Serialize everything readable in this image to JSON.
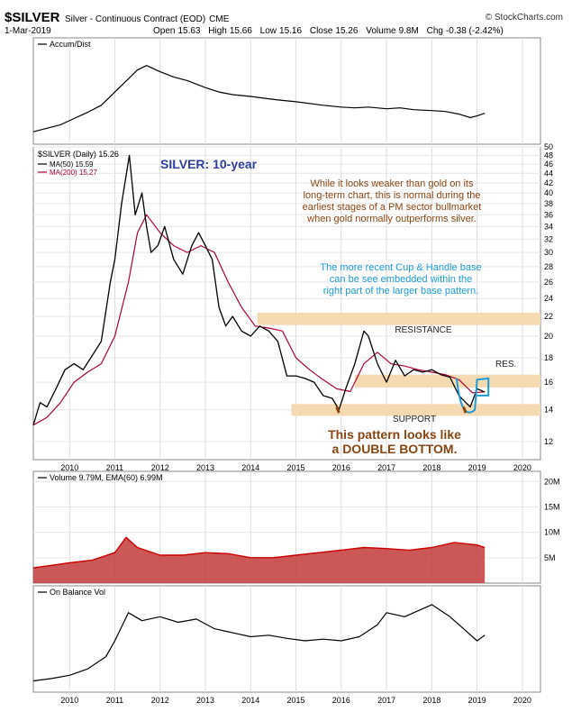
{
  "header": {
    "symbol": "$SILVER",
    "description": "Silver - Continuous Contract (EOD)",
    "exchange": "CME",
    "date": "1-Mar-2019",
    "source": "© StockCharts.com",
    "open_label": "Open",
    "open": "15.63",
    "high_label": "High",
    "high": "15.66",
    "low_label": "Low",
    "low": "15.16",
    "close_label": "Close",
    "close": "15.26",
    "volume_label": "Volume",
    "volume": "9.8M",
    "chg_label": "Chg",
    "chg": "-0.38 (-2.42%)"
  },
  "colors": {
    "price": "#000000",
    "ma50": "#000000",
    "ma200": "#b0003a",
    "band": "#f5d9b0",
    "annotation": "#8b4513",
    "cup": "#1e9bd7",
    "volume": "#c23a3a",
    "ema": "#cc0000"
  },
  "chart_data": [
    {
      "type": "line",
      "panel": "accum-dist",
      "legend": [
        "Accum/Dist"
      ],
      "x": [
        2009.2,
        2009.5,
        2009.8,
        2010.1,
        2010.4,
        2010.7,
        2011.0,
        2011.3,
        2011.5,
        2011.7,
        2012.0,
        2012.3,
        2012.6,
        2013.0,
        2013.3,
        2013.6,
        2014.0,
        2014.3,
        2014.6,
        2015.0,
        2015.3,
        2015.6,
        2016.0,
        2016.3,
        2016.6,
        2017.0,
        2017.3,
        2017.6,
        2018.0,
        2018.3,
        2018.6,
        2018.85,
        2019.0,
        2019.17
      ],
      "y": [
        10,
        14,
        18,
        25,
        32,
        40,
        55,
        70,
        80,
        85,
        78,
        72,
        68,
        60,
        55,
        52,
        50,
        48,
        46,
        44,
        42,
        40,
        38,
        37,
        38,
        36,
        37,
        35,
        34,
        33,
        30,
        26,
        28,
        31
      ]
    },
    {
      "type": "line",
      "panel": "price",
      "legend": [
        "$SILVER (Daily) 15.26",
        "MA(50) 15.59",
        "MA(200) 15.27"
      ],
      "ylim": [
        11,
        50
      ],
      "ytick_labels": [
        "50",
        "48",
        "46",
        "44",
        "42",
        "40",
        "38",
        "36",
        "34",
        "32",
        "30",
        "28",
        "26",
        "24",
        "22",
        "20",
        "18",
        "16",
        "14",
        "12"
      ],
      "yticks": [
        50,
        48,
        46,
        44,
        42,
        40,
        38,
        36,
        34,
        32,
        30,
        28,
        26,
        24,
        22,
        20,
        18,
        16,
        14,
        12
      ],
      "xtick_labels": [
        "2010",
        "2011",
        "2012",
        "2013",
        "2014",
        "2015",
        "2016",
        "2017",
        "2018",
        "2019",
        "2020"
      ],
      "xticks": [
        2010,
        2011,
        2012,
        2013,
        2014,
        2015,
        2016,
        2017,
        2018,
        2019,
        2020
      ],
      "xlim": [
        2009.2,
        2020.4
      ],
      "series": [
        {
          "x": [
            2009.2,
            2009.35,
            2009.5,
            2009.7,
            2009.9,
            2010.1,
            2010.3,
            2010.5,
            2010.7,
            2010.9,
            2011.0,
            2011.15,
            2011.32,
            2011.45,
            2011.6,
            2011.7,
            2011.8,
            2011.95,
            2012.1,
            2012.3,
            2012.5,
            2012.7,
            2012.85,
            2013.0,
            2013.15,
            2013.3,
            2013.45,
            2013.6,
            2013.8,
            2014.0,
            2014.2,
            2014.4,
            2014.6,
            2014.8,
            2015.0,
            2015.2,
            2015.4,
            2015.6,
            2015.8,
            2015.95,
            2016.1,
            2016.3,
            2016.5,
            2016.6,
            2016.8,
            2017.0,
            2017.2,
            2017.4,
            2017.6,
            2017.8,
            2018.0,
            2018.2,
            2018.4,
            2018.6,
            2018.75,
            2018.85,
            2019.0,
            2019.17
          ],
          "y": [
            13,
            14.5,
            14.2,
            15.5,
            17,
            17.5,
            17,
            18.2,
            19.5,
            26,
            29,
            38,
            48,
            36,
            40,
            34,
            30,
            31,
            34,
            29,
            27,
            31,
            33,
            31,
            29,
            23,
            21,
            22,
            20.5,
            20,
            21,
            20.5,
            19.5,
            16.5,
            16.5,
            16.3,
            16,
            15,
            14.8,
            14,
            15.5,
            17.5,
            20.5,
            20,
            17.5,
            16,
            17.8,
            16.5,
            17,
            16.8,
            17,
            16.6,
            16.4,
            15,
            14.5,
            14.2,
            15.5,
            15.26
          ]
        },
        {
          "x": [
            2009.2,
            2009.5,
            2009.8,
            2010.1,
            2010.4,
            2010.7,
            2011.0,
            2011.3,
            2011.5,
            2011.7,
            2012.0,
            2012.3,
            2012.6,
            2012.9,
            2013.2,
            2013.5,
            2013.8,
            2014.1,
            2014.4,
            2014.7,
            2015.0,
            2015.3,
            2015.6,
            2015.9,
            2016.2,
            2016.5,
            2016.8,
            2017.1,
            2017.4,
            2017.7,
            2018.0,
            2018.3,
            2018.6,
            2018.9,
            2019.17
          ],
          "y": [
            13,
            13.5,
            14.5,
            16,
            16.8,
            17.5,
            20,
            26,
            33,
            36,
            33,
            31,
            30,
            31,
            30,
            26,
            23,
            21,
            20.8,
            20.5,
            18,
            17,
            16.2,
            15.5,
            15.3,
            17.5,
            18.5,
            17.5,
            17.3,
            17,
            16.8,
            16.6,
            16.2,
            15.2,
            15.27
          ]
        }
      ],
      "annotations": {
        "title": "SILVER: 10-year",
        "note1": [
          "While it looks weaker than gold on its",
          "long-term chart, this is normal during the",
          "earliest stages of a PM sector bullmarket",
          "when gold normally outperforms silver."
        ],
        "note2": [
          "The more recent Cup & Handle base",
          "can be see embedded within the",
          "right part of the larger base pattern."
        ],
        "resistance": "RESISTANCE",
        "res": "RES.",
        "support": "SUPPORT",
        "double_bottom": [
          "This pattern looks like",
          "a DOUBLE BOTTOM."
        ]
      }
    },
    {
      "type": "bar",
      "panel": "volume",
      "legend": [
        "Volume 9.79M, EMA(60) 6.99M"
      ],
      "ytick_labels": [
        "20M",
        "15M",
        "10M",
        "5M"
      ],
      "yticks": [
        20,
        15,
        10,
        5
      ],
      "ylim": [
        0,
        22
      ],
      "x": [
        2009.2,
        2009.6,
        2010.0,
        2010.5,
        2011.0,
        2011.25,
        2011.5,
        2012.0,
        2012.5,
        2013.0,
        2013.5,
        2014.0,
        2014.5,
        2015.0,
        2015.5,
        2016.0,
        2016.5,
        2017.0,
        2017.5,
        2018.0,
        2018.5,
        2019.0,
        2019.17
      ],
      "ema": [
        3,
        3.5,
        4,
        4.5,
        6,
        9,
        7,
        5.5,
        5.5,
        6,
        5.8,
        5,
        5,
        5.5,
        6,
        6.5,
        7,
        6.8,
        6.5,
        7,
        8,
        7.5,
        6.99
      ]
    },
    {
      "type": "line",
      "panel": "obv",
      "legend": [
        "On Balance Vol"
      ],
      "xtick_labels": [
        "2010",
        "2011",
        "2012",
        "2013",
        "2014",
        "2015",
        "2016",
        "2017",
        "2018",
        "2019",
        "2020"
      ],
      "xticks": [
        2010,
        2011,
        2012,
        2013,
        2014,
        2015,
        2016,
        2017,
        2018,
        2019,
        2020
      ],
      "x": [
        2009.2,
        2009.6,
        2010.0,
        2010.4,
        2010.8,
        2011.0,
        2011.3,
        2011.6,
        2012.0,
        2012.4,
        2012.8,
        2013.2,
        2013.6,
        2014.0,
        2014.4,
        2014.8,
        2015.2,
        2015.6,
        2016.0,
        2016.4,
        2016.8,
        2017.0,
        2017.4,
        2017.8,
        2018.0,
        2018.4,
        2018.8,
        2019.0,
        2019.17
      ],
      "y": [
        5,
        8,
        12,
        20,
        35,
        55,
        90,
        80,
        85,
        78,
        82,
        70,
        65,
        60,
        62,
        58,
        55,
        57,
        55,
        60,
        75,
        90,
        85,
        95,
        100,
        85,
        65,
        55,
        62
      ]
    }
  ]
}
